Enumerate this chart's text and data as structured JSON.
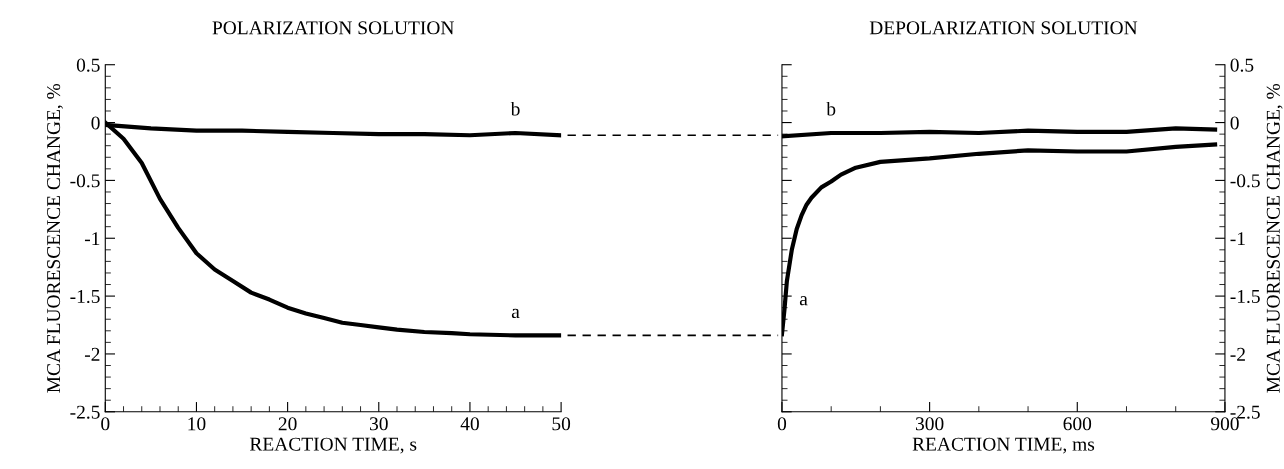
{
  "chart_data": [
    {
      "type": "line",
      "title": "POLARIZATION SOLUTION",
      "xlabel": "REACTION TIME, s",
      "ylabel": "MCA FLUORESCENCE CHANGE, %",
      "xlim": [
        0,
        50
      ],
      "xticks": [
        0,
        10,
        20,
        30,
        40,
        50
      ],
      "ylim": [
        -2.5,
        0.5
      ],
      "yticks": [
        {
          "value": 0.5,
          "label": "0.5"
        },
        0,
        {
          "value": -0.5,
          "label": "-0.5"
        },
        {
          "value": -1,
          "label": "-1"
        },
        {
          "value": -1.5,
          "label": "-1.5"
        },
        {
          "value": -2,
          "label": "-2"
        },
        {
          "value": -2.5,
          "label": "-2.5"
        }
      ],
      "grid": false,
      "marker": "none",
      "line_style": "solid",
      "annotations": [
        {
          "text": "b",
          "x": 45,
          "y": -0.09
        },
        {
          "text": "a",
          "x": 45,
          "y": -1.84
        }
      ],
      "series": [
        {
          "color": "#000000",
          "x": [
            0,
            2,
            4,
            6,
            8,
            10,
            12,
            14,
            16,
            18,
            20,
            22,
            24,
            26,
            28,
            30,
            32,
            35,
            38,
            40,
            45,
            50
          ],
          "values": [
            0,
            -0.14,
            -0.35,
            -0.66,
            -0.91,
            -1.13,
            -1.27,
            -1.37,
            -1.47,
            -1.53,
            -1.6,
            -1.65,
            -1.69,
            -1.73,
            -1.75,
            -1.77,
            -1.79,
            -1.81,
            -1.82,
            -1.83,
            -1.84,
            -1.84
          ]
        },
        {
          "color": "#000000",
          "x": [
            0,
            5,
            10,
            15,
            20,
            25,
            30,
            35,
            40,
            45,
            50
          ],
          "values": [
            -0.02,
            -0.05,
            -0.07,
            -0.07,
            -0.08,
            -0.09,
            -0.1,
            -0.1,
            -0.11,
            -0.09,
            -0.11
          ]
        }
      ]
    },
    {
      "type": "line",
      "title": "DEPOLARIZATION SOLUTION",
      "xlabel": "REACTION TIME, ms",
      "ylabel": "MCA FLUORESCENCE CHANGE, %",
      "xlim": [
        0,
        900
      ],
      "xticks": [
        0,
        300,
        600,
        900
      ],
      "ylim": [
        -2.5,
        0.5
      ],
      "yticks": [
        {
          "value": 0.5,
          "label": "0.5"
        },
        0,
        {
          "value": -0.5,
          "label": "-0.5"
        },
        {
          "value": -1,
          "label": "-1"
        },
        {
          "value": -1.5,
          "label": "-1.5"
        },
        {
          "value": -2,
          "label": "-2"
        },
        {
          "value": -2.5,
          "label": "-2.5"
        }
      ],
      "grid": false,
      "marker": "none",
      "line_style": "solid",
      "annotations": [
        {
          "text": "b",
          "x": 100,
          "y": -0.09
        },
        {
          "text": "a",
          "x": 10,
          "y": -1.37
        }
      ],
      "series": [
        {
          "color": "#000000",
          "x": [
            0,
            5,
            10,
            20,
            30,
            40,
            50,
            60,
            80,
            100,
            120,
            150,
            200,
            300,
            400,
            500,
            600,
            700,
            800,
            880
          ],
          "values": [
            -1.83,
            -1.62,
            -1.37,
            -1.1,
            -0.92,
            -0.8,
            -0.71,
            -0.65,
            -0.56,
            -0.51,
            -0.45,
            -0.39,
            -0.34,
            -0.31,
            -0.27,
            -0.24,
            -0.25,
            -0.25,
            -0.21,
            -0.19
          ]
        },
        {
          "color": "#000000",
          "x": [
            0,
            100,
            200,
            300,
            400,
            500,
            600,
            700,
            800,
            880
          ],
          "values": [
            -0.12,
            -0.09,
            -0.09,
            -0.08,
            -0.09,
            -0.07,
            -0.08,
            -0.08,
            -0.05,
            -0.06
          ]
        }
      ]
    }
  ]
}
